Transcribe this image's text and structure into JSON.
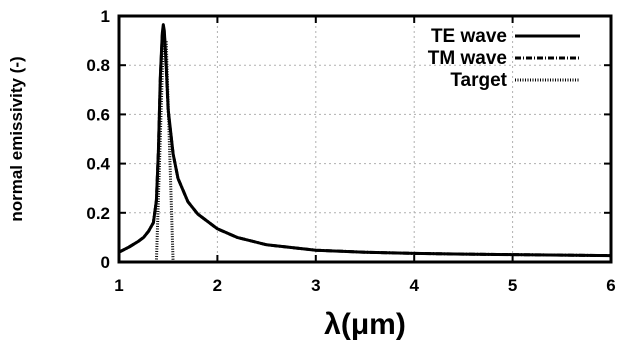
{
  "chart_data": {
    "type": "line",
    "title": "",
    "xlabel": "λ(μm)",
    "ylabel": "normal emissivity (-)",
    "xlim": [
      1,
      6
    ],
    "ylim": [
      0,
      1
    ],
    "xticks": [
      1,
      2,
      3,
      4,
      5,
      6
    ],
    "yticks": [
      0,
      0.2,
      0.4,
      0.6,
      0.8,
      1
    ],
    "ytick_labels": [
      "0",
      "0.2",
      "0.4",
      "0.6",
      "0.8",
      "1"
    ],
    "grid": true,
    "legend_position": "top-right",
    "series": [
      {
        "name": "TE wave",
        "style": "solid",
        "x": [
          1.0,
          1.1,
          1.2,
          1.25,
          1.3,
          1.35,
          1.38,
          1.4,
          1.42,
          1.44,
          1.45,
          1.46,
          1.48,
          1.5,
          1.55,
          1.6,
          1.7,
          1.8,
          2.0,
          2.2,
          2.5,
          3.0,
          3.5,
          4.0,
          4.5,
          5.0,
          5.5,
          6.0
        ],
        "y": [
          0.04,
          0.06,
          0.085,
          0.1,
          0.125,
          0.16,
          0.25,
          0.45,
          0.75,
          0.93,
          0.965,
          0.94,
          0.8,
          0.62,
          0.44,
          0.34,
          0.245,
          0.195,
          0.135,
          0.1,
          0.07,
          0.048,
          0.04,
          0.035,
          0.032,
          0.03,
          0.028,
          0.026
        ]
      },
      {
        "name": "TM wave",
        "style": "dash-dot",
        "x": [
          1.0,
          1.1,
          1.2,
          1.25,
          1.3,
          1.35,
          1.38,
          1.4,
          1.42,
          1.44,
          1.45,
          1.46,
          1.48,
          1.5,
          1.55,
          1.6,
          1.7,
          1.8,
          2.0,
          2.2,
          2.5,
          3.0,
          3.5,
          4.0,
          4.5,
          5.0,
          5.5,
          6.0
        ],
        "y": [
          0.04,
          0.06,
          0.085,
          0.1,
          0.125,
          0.16,
          0.25,
          0.45,
          0.74,
          0.92,
          0.955,
          0.93,
          0.79,
          0.61,
          0.44,
          0.34,
          0.245,
          0.195,
          0.135,
          0.1,
          0.07,
          0.048,
          0.04,
          0.035,
          0.032,
          0.03,
          0.028,
          0.026
        ]
      },
      {
        "name": "Target",
        "style": "dotted",
        "x": [
          1.0,
          1.38,
          1.45,
          1.46,
          1.47,
          1.48,
          1.55,
          6.0
        ],
        "y": [
          0,
          0,
          0.9,
          0.9,
          0.9,
          0.9,
          0,
          0
        ]
      }
    ]
  }
}
